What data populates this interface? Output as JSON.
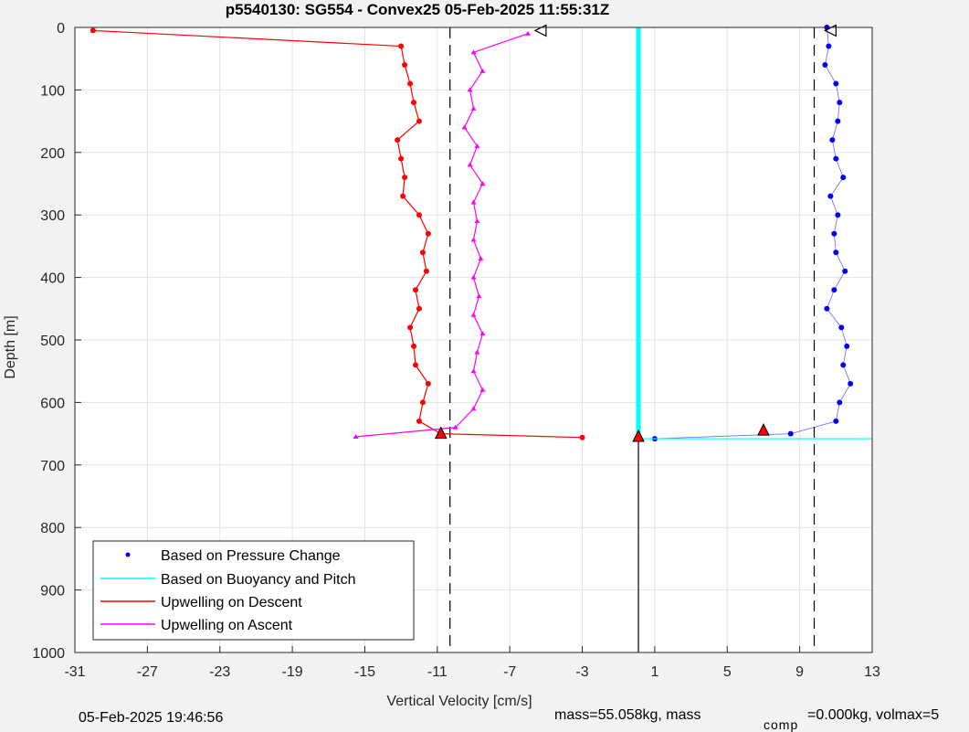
{
  "chart_data": {
    "type": "scatter",
    "title": "p5540130: SG554 - Convex25 05-Feb-2025 11:55:31Z",
    "xlabel": "Vertical Velocity [cm/s]",
    "ylabel": "Depth [m]",
    "xlim": [
      -31,
      13
    ],
    "ylim": [
      0,
      1000
    ],
    "y_reversed": true,
    "grid": true,
    "xticks": [
      -31,
      -27,
      -23,
      -19,
      -15,
      -11,
      -7,
      -3,
      1,
      5,
      9,
      13
    ],
    "yticks": [
      0,
      100,
      200,
      300,
      400,
      500,
      600,
      700,
      800,
      900,
      1000
    ],
    "legend_position": "bottom-left",
    "legend": [
      {
        "label": "Based on Pressure Change",
        "color": "#0000ff",
        "style": "dot"
      },
      {
        "label": "Based on Buoyancy and Pitch",
        "color": "#00ffff",
        "style": "line"
      },
      {
        "label": "Upwelling on Descent",
        "color": "#ff0000",
        "style": "line"
      },
      {
        "label": "Upwelling on Ascent",
        "color": "#ff00ff",
        "style": "line"
      }
    ],
    "reference_lines": {
      "dashed_x": [
        -10.3,
        9.8
      ],
      "solid_x": [
        0.1
      ],
      "solid_from_depth": 660
    },
    "series": [
      {
        "name": "Based on Pressure Change",
        "color": "#0000ff",
        "depth": [
          0,
          30,
          60,
          90,
          120,
          150,
          180,
          210,
          240,
          270,
          300,
          330,
          360,
          390,
          420,
          450,
          480,
          510,
          540,
          570,
          600,
          630,
          650,
          658
        ],
        "velocity": [
          10.5,
          10.6,
          10.4,
          11.0,
          11.2,
          11.1,
          10.8,
          11.0,
          11.4,
          10.7,
          11.1,
          10.9,
          11.0,
          11.5,
          10.9,
          10.5,
          11.3,
          11.6,
          11.4,
          11.8,
          11.2,
          11.0,
          8.5,
          1.0
        ]
      },
      {
        "name": "Based on Buoyancy and Pitch",
        "color": "#00ffff",
        "depth": [
          0,
          658,
          658
        ],
        "velocity": [
          0.1,
          0.1,
          13
        ]
      },
      {
        "name": "Upwelling on Descent",
        "color": "#ff0000",
        "depth": [
          5,
          30,
          60,
          90,
          120,
          150,
          180,
          210,
          240,
          270,
          300,
          330,
          360,
          390,
          420,
          450,
          480,
          510,
          540,
          570,
          600,
          630,
          650,
          656
        ],
        "velocity": [
          -30,
          -13,
          -12.8,
          -12.5,
          -12.3,
          -12.0,
          -13.2,
          -13.0,
          -12.8,
          -12.9,
          -12.0,
          -11.5,
          -11.8,
          -11.6,
          -12.2,
          -12.0,
          -12.5,
          -12.3,
          -12.2,
          -11.5,
          -11.8,
          -12.0,
          -10.8,
          -3
        ]
      },
      {
        "name": "Upwelling on Ascent",
        "color": "#ff00ff",
        "depth": [
          655,
          640,
          610,
          580,
          550,
          520,
          490,
          460,
          430,
          400,
          370,
          340,
          310,
          280,
          250,
          220,
          190,
          160,
          130,
          100,
          70,
          40,
          10
        ],
        "velocity": [
          -15.5,
          -10,
          -9,
          -8.5,
          -9,
          -8.8,
          -8.5,
          -9,
          -8.7,
          -9,
          -8.6,
          -9,
          -8.8,
          -9,
          -8.5,
          -9.2,
          -8.8,
          -9.5,
          -9,
          -9.2,
          -8.5,
          -9,
          -6
        ]
      }
    ],
    "markers": [
      {
        "shape": "triangle-left",
        "depth": 5,
        "velocity": -5.3
      },
      {
        "shape": "triangle-left",
        "depth": 5,
        "velocity": 10.7
      },
      {
        "shape": "triangle-up-red",
        "depth": 645,
        "velocity": 7.0
      },
      {
        "shape": "triangle-up-red",
        "depth": 655,
        "velocity": 0.1
      },
      {
        "shape": "triangle-up-red",
        "depth": 650,
        "velocity": -10.8
      }
    ]
  },
  "footer": {
    "timestamp": "05-Feb-2025 19:46:56",
    "mass_text": "mass=55.058kg, mass",
    "sub_text": "comp",
    "rest_text": "=0.000kg, volmax=5"
  }
}
